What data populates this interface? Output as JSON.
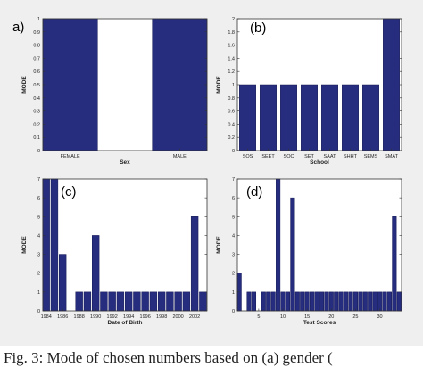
{
  "colors": {
    "bar": "#262d7e",
    "bar_edge": "#161a55",
    "frame": "#333333",
    "panel_bg": "#efefef"
  },
  "caption": "Fig. 3:  Mode of chosen numbers based on (a) gender (",
  "chart_data": [
    {
      "type": "bar",
      "panel_label": "a)",
      "title": "",
      "xlabel": "Sex",
      "ylabel": "MODE",
      "categories": [
        "FEMALE",
        "",
        "MALE"
      ],
      "values": [
        1,
        0,
        1
      ],
      "ylim": [
        0,
        1
      ],
      "yticks": [
        0,
        0.1,
        0.2,
        0.3,
        0.4,
        0.5,
        0.6,
        0.7,
        0.8,
        0.9,
        1
      ],
      "ytick_labels": [
        "0",
        "0.1",
        "0.2",
        "0.3",
        "0.4",
        "0.5",
        "0.6",
        "0.7",
        "0.8",
        "0.9",
        "1"
      ],
      "grid": false
    },
    {
      "type": "bar",
      "panel_label": "(b)",
      "title": "",
      "xlabel": "School",
      "ylabel": "MODE",
      "categories": [
        "SOS",
        "SEET",
        "SOC",
        "SET",
        "SAAT",
        "SHHT",
        "SEMS",
        "SMAT"
      ],
      "values": [
        1,
        1,
        1,
        1,
        1,
        1,
        1,
        2
      ],
      "ylim": [
        0,
        2
      ],
      "yticks": [
        0,
        0.2,
        0.4,
        0.6,
        0.8,
        1,
        1.2,
        1.4,
        1.6,
        1.8,
        2
      ],
      "ytick_labels": [
        "0",
        "0.2",
        "0.4",
        "0.6",
        "0.8",
        "1",
        "1.2",
        "1.4",
        "1.6",
        "1.8",
        "2"
      ],
      "grid": false
    },
    {
      "type": "bar",
      "panel_label": "(c)",
      "title": "",
      "xlabel": "Date of Birth",
      "ylabel": "MODE",
      "x": [
        1984,
        1985,
        1986,
        1988,
        1989,
        1990,
        1991,
        1992,
        1993,
        1994,
        1995,
        1996,
        1997,
        1998,
        1999,
        2000,
        2001,
        2002,
        2003
      ],
      "values": [
        7,
        7,
        3,
        1,
        1,
        4,
        1,
        1,
        1,
        1,
        1,
        1,
        1,
        1,
        1,
        1,
        1,
        5,
        1
      ],
      "xlim": [
        1983.6,
        2003.5
      ],
      "ylim": [
        0,
        7
      ],
      "xticks": [
        1984,
        1986,
        1988,
        1990,
        1992,
        1994,
        1996,
        1998,
        2000,
        2002
      ],
      "xtick_labels": [
        "1984",
        "1986",
        "1988",
        "1990",
        "1992",
        "1994",
        "1996",
        "1998",
        "2000",
        "2002"
      ],
      "yticks": [
        0,
        1,
        2,
        3,
        4,
        5,
        6,
        7
      ],
      "ytick_labels": [
        "0",
        "1",
        "2",
        "3",
        "4",
        "5",
        "6",
        "7"
      ],
      "grid": false
    },
    {
      "type": "bar",
      "panel_label": "(d)",
      "title": "",
      "xlabel": "Test Scores",
      "ylabel": "MODE",
      "x": [
        1,
        3,
        4,
        6,
        7,
        8,
        9,
        10,
        11,
        12,
        13,
        14,
        15,
        16,
        17,
        18,
        19,
        20,
        21,
        22,
        23,
        24,
        25,
        26,
        27,
        28,
        29,
        30,
        31,
        32,
        33,
        34
      ],
      "values": [
        2,
        1,
        1,
        1,
        1,
        1,
        7,
        1,
        1,
        6,
        1,
        1,
        1,
        1,
        1,
        1,
        1,
        1,
        1,
        1,
        1,
        1,
        1,
        1,
        1,
        1,
        1,
        1,
        1,
        1,
        5,
        1
      ],
      "xlim": [
        0.6,
        34.5
      ],
      "ylim": [
        0,
        7
      ],
      "xticks": [
        5,
        10,
        15,
        20,
        25,
        30
      ],
      "xtick_labels": [
        "5",
        "10",
        "15",
        "20",
        "25",
        "30"
      ],
      "yticks": [
        0,
        1,
        2,
        3,
        4,
        5,
        6,
        7
      ],
      "ytick_labels": [
        "0",
        "1",
        "2",
        "3",
        "4",
        "5",
        "6",
        "7"
      ],
      "grid": false
    }
  ]
}
